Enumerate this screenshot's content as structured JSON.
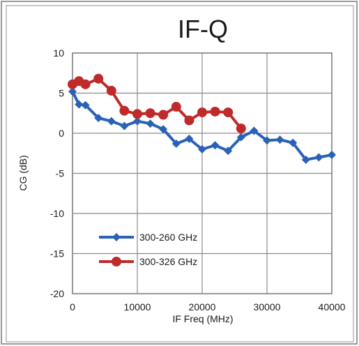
{
  "chart_data": {
    "type": "line",
    "title": "IF-Q",
    "xlabel": "IF Freq (MHz)",
    "ylabel": "CG (dB)",
    "xlim": [
      0,
      40000
    ],
    "ylim": [
      -20,
      10
    ],
    "xticks": [
      0,
      10000,
      20000,
      30000,
      40000
    ],
    "yticks": [
      10,
      5,
      0,
      -5,
      -10,
      -15,
      -20
    ],
    "xtick_labels": [
      "0",
      "10000",
      "20000",
      "30000",
      "40000"
    ],
    "ytick_labels": [
      "10",
      "5",
      "0",
      "-5",
      "-10",
      "-15",
      "-20"
    ],
    "grid": true,
    "legend_position": "lower-left",
    "series": [
      {
        "name": "300-260 GHz",
        "color": "#2a62b8",
        "marker": "diamond",
        "x": [
          0,
          1000,
          2000,
          4000,
          6000,
          8000,
          10000,
          12000,
          14000,
          16000,
          18000,
          20000,
          22000,
          24000,
          26000,
          28000,
          30000,
          32000,
          34000,
          36000,
          38000,
          40000
        ],
        "y": [
          5.2,
          3.6,
          3.5,
          1.9,
          1.5,
          0.9,
          1.5,
          1.2,
          0.5,
          -1.3,
          -0.7,
          -2.0,
          -1.5,
          -2.2,
          -0.5,
          0.3,
          -0.9,
          -0.8,
          -1.2,
          -3.3,
          -3.0,
          -2.7
        ]
      },
      {
        "name": "300-326 GHz",
        "color": "#bf2a2a",
        "marker": "circle",
        "x": [
          0,
          1000,
          2000,
          4000,
          6000,
          8000,
          10000,
          12000,
          14000,
          16000,
          18000,
          20000,
          22000,
          24000,
          26000
        ],
        "y": [
          6.1,
          6.5,
          6.1,
          6.8,
          5.3,
          2.8,
          2.4,
          2.5,
          2.3,
          3.3,
          1.6,
          2.6,
          2.7,
          2.6,
          0.6
        ]
      }
    ]
  }
}
